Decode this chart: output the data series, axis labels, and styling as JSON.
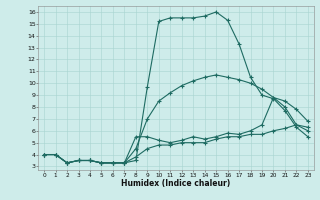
{
  "xlabel": "Humidex (Indice chaleur)",
  "bg_color": "#ceecea",
  "grid_color": "#a8d4d0",
  "line_color": "#1e6b62",
  "xlim_min": -0.5,
  "xlim_max": 23.5,
  "ylim_min": 2.7,
  "ylim_max": 16.5,
  "xticks": [
    0,
    1,
    2,
    3,
    4,
    5,
    6,
    7,
    8,
    9,
    10,
    11,
    12,
    13,
    14,
    15,
    16,
    17,
    18,
    19,
    20,
    21,
    22,
    23
  ],
  "yticks": [
    3,
    4,
    5,
    6,
    7,
    8,
    9,
    10,
    11,
    12,
    13,
    14,
    15,
    16
  ],
  "curve1_x": [
    0,
    1,
    2,
    3,
    4,
    5,
    6,
    7,
    8,
    9,
    10,
    11,
    12,
    13,
    14,
    15,
    16,
    17,
    18,
    19,
    20,
    21,
    22,
    23
  ],
  "curve1_y": [
    4.0,
    4.0,
    3.3,
    3.5,
    3.5,
    3.3,
    3.3,
    3.3,
    3.5,
    9.7,
    15.2,
    15.5,
    15.5,
    15.5,
    15.65,
    16.0,
    15.3,
    13.3,
    10.5,
    9.0,
    8.7,
    7.7,
    6.3,
    5.5
  ],
  "curve2_x": [
    0,
    1,
    2,
    3,
    4,
    5,
    6,
    7,
    8,
    9,
    10,
    11,
    12,
    13,
    14,
    15,
    16,
    17,
    18,
    19,
    20,
    21,
    22,
    23
  ],
  "curve2_y": [
    4.0,
    4.0,
    3.3,
    3.5,
    3.5,
    3.3,
    3.3,
    3.3,
    4.5,
    7.0,
    8.5,
    9.2,
    9.8,
    10.2,
    10.5,
    10.7,
    10.5,
    10.3,
    10.0,
    9.5,
    8.8,
    8.0,
    6.5,
    6.0
  ],
  "curve3_x": [
    0,
    1,
    2,
    3,
    4,
    5,
    6,
    7,
    8,
    9,
    10,
    11,
    12,
    13,
    14,
    15,
    16,
    17,
    18,
    19,
    20,
    21,
    22,
    23
  ],
  "curve3_y": [
    4.0,
    4.0,
    3.3,
    3.5,
    3.5,
    3.3,
    3.3,
    3.3,
    5.5,
    5.5,
    5.2,
    5.0,
    5.2,
    5.5,
    5.3,
    5.5,
    5.8,
    5.7,
    6.0,
    6.5,
    8.8,
    8.5,
    7.8,
    6.8
  ],
  "curve4_x": [
    0,
    1,
    2,
    3,
    4,
    5,
    6,
    7,
    8,
    9,
    10,
    11,
    12,
    13,
    14,
    15,
    16,
    17,
    18,
    19,
    20,
    21,
    22,
    23
  ],
  "curve4_y": [
    4.0,
    4.0,
    3.3,
    3.5,
    3.5,
    3.3,
    3.3,
    3.3,
    3.8,
    4.5,
    4.8,
    4.8,
    5.0,
    5.0,
    5.0,
    5.3,
    5.5,
    5.5,
    5.7,
    5.7,
    6.0,
    6.2,
    6.5,
    6.3
  ]
}
